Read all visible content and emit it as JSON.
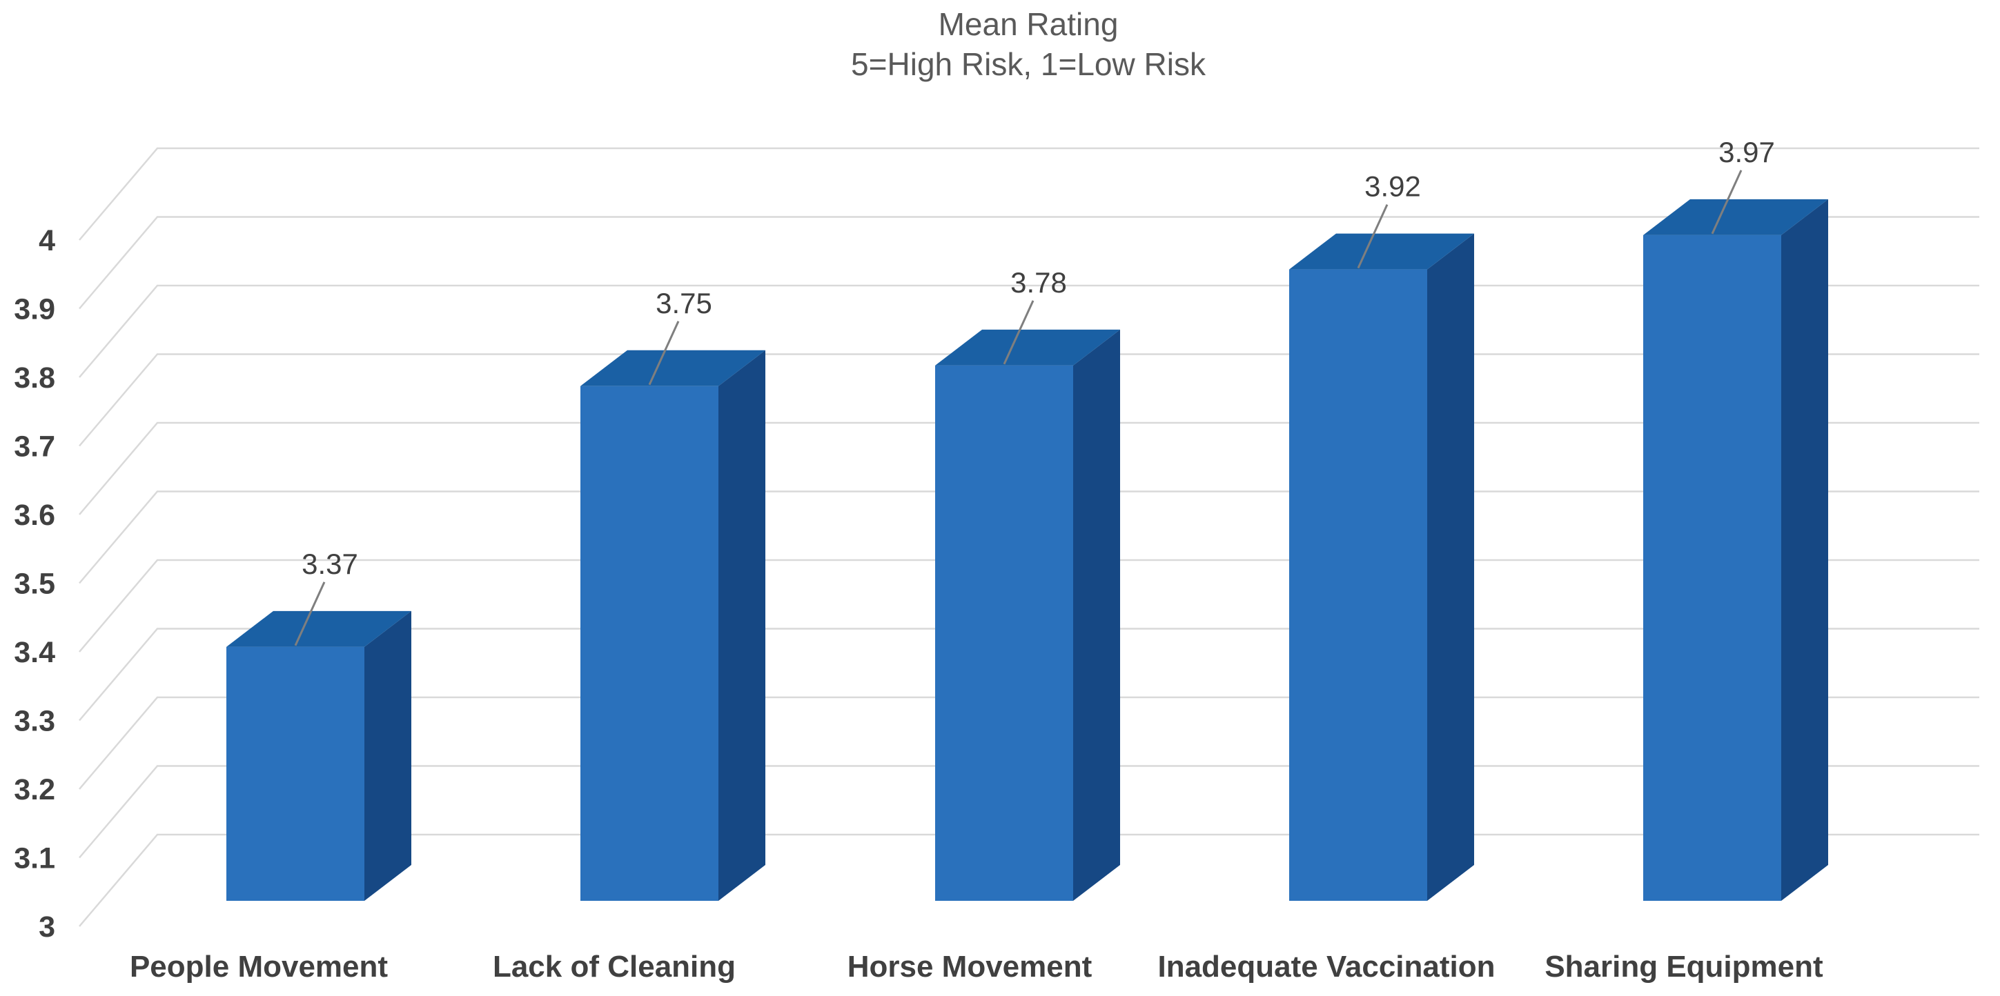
{
  "chart_data": {
    "type": "bar",
    "projection": "3d",
    "title": "Mean Rating",
    "subtitle": "5=High Risk, 1=Low Risk",
    "categories": [
      "People Movement",
      "Lack of Cleaning",
      "Horse Movement",
      "Inadequate Vaccination",
      "Sharing Equipment"
    ],
    "values": [
      3.37,
      3.75,
      3.78,
      3.92,
      3.97
    ],
    "value_labels": [
      "3.37",
      "3.75",
      "3.78",
      "3.92",
      "3.97"
    ],
    "series_name": "Mean Rating",
    "ylim": [
      3,
      4
    ],
    "y_tick_step": 0.1,
    "y_tick_labels": [
      "4",
      "3.9",
      "3.8",
      "3.7",
      "3.6",
      "3.5",
      "3.4",
      "3.3",
      "3.2",
      "3.1",
      "3"
    ],
    "xlabel": "",
    "ylabel": "",
    "grid": true,
    "legend": "none",
    "colors": {
      "bar_front": "#2A71BC",
      "bar_top": "#1A60A4",
      "bar_side": "#164884",
      "gridline": "#D9D9D9",
      "leader_line": "#7F7F7F",
      "title_text": "#595959",
      "axis_text": "#404040",
      "data_label_text": "#404040",
      "background": "#FFFFFF"
    }
  }
}
